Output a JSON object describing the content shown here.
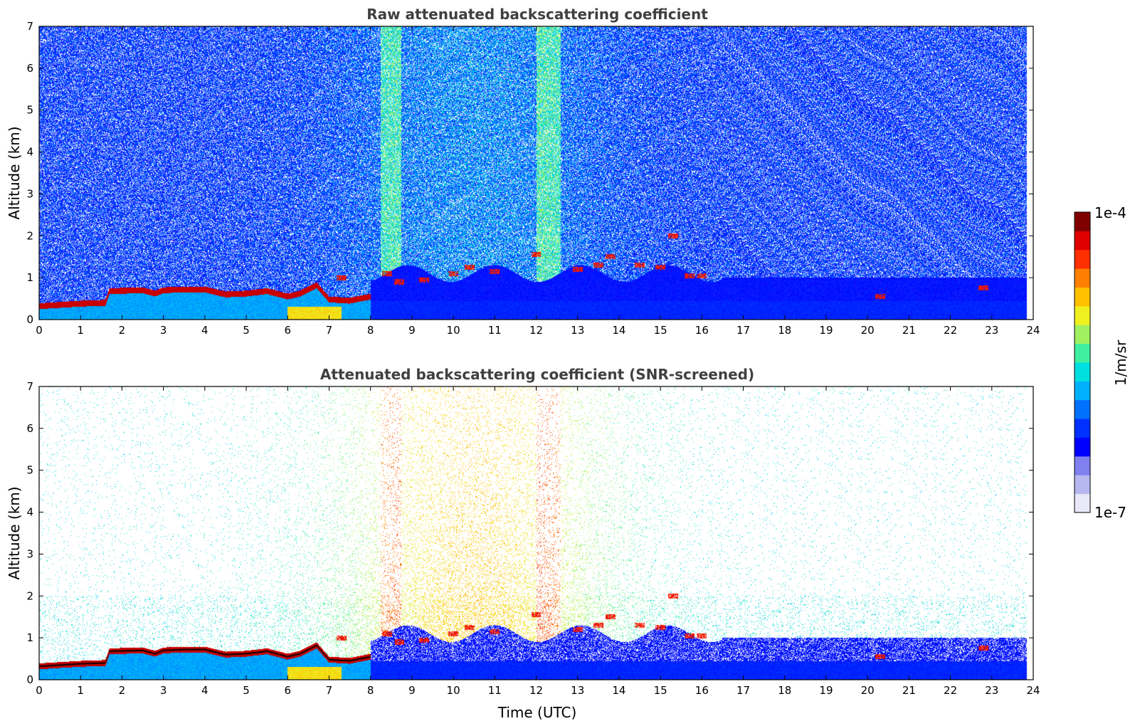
{
  "chart_data": [
    {
      "type": "heatmap",
      "title": "Raw attenuated backscattering coefficient",
      "xlabel": "",
      "ylabel": "Altitude (km)",
      "xlim": [
        0,
        24
      ],
      "ylim": [
        0,
        7
      ],
      "xticks": [
        "0",
        "1",
        "2",
        "3",
        "4",
        "5",
        "6",
        "7",
        "8",
        "9",
        "10",
        "11",
        "12",
        "13",
        "14",
        "15",
        "16",
        "17",
        "18",
        "19",
        "20",
        "21",
        "22",
        "23",
        "24"
      ],
      "yticks": [
        "0",
        "1",
        "2",
        "3",
        "4",
        "5",
        "6",
        "7"
      ],
      "screened": false,
      "cloud_layer": {
        "time": [
          0,
          0.5,
          1.0,
          1.6,
          1.7,
          2.5,
          2.8,
          3.0,
          3.5,
          4.0,
          4.5,
          5.0,
          5.5,
          6.0,
          6.3,
          6.7,
          7.0,
          7.5,
          8.0
        ],
        "base_km": [
          0.32,
          0.35,
          0.38,
          0.4,
          0.68,
          0.7,
          0.62,
          0.7,
          0.72,
          0.72,
          0.6,
          0.62,
          0.68,
          0.55,
          0.62,
          0.82,
          0.48,
          0.45,
          0.55
        ]
      },
      "cloud_fragments": {
        "time": [
          7.3,
          8.4,
          8.7,
          9.3,
          10.0,
          10.4,
          11.0,
          12.0,
          13.0,
          13.5,
          13.8,
          14.5,
          15.0,
          15.3,
          15.7,
          16.0,
          20.3,
          22.8
        ],
        "base_km": [
          1.0,
          1.1,
          0.9,
          0.95,
          1.1,
          1.25,
          1.15,
          1.55,
          1.2,
          1.3,
          1.5,
          1.3,
          1.25,
          2.0,
          1.05,
          1.05,
          0.55,
          0.75
        ]
      },
      "colorbar": {
        "label": "1/m/sr",
        "min": "1e-7",
        "max": "1e-4"
      }
    },
    {
      "type": "heatmap",
      "title": "Attenuated backscattering coefficient (SNR-screened)",
      "xlabel": "Time (UTC)",
      "ylabel": "Altitude (km)",
      "xlim": [
        0,
        24
      ],
      "ylim": [
        0,
        7
      ],
      "xticks": [
        "0",
        "1",
        "2",
        "3",
        "4",
        "5",
        "6",
        "7",
        "8",
        "9",
        "10",
        "11",
        "12",
        "13",
        "14",
        "15",
        "16",
        "17",
        "18",
        "19",
        "20",
        "21",
        "22",
        "23",
        "24"
      ],
      "yticks": [
        "0",
        "1",
        "2",
        "3",
        "4",
        "5",
        "6",
        "7"
      ],
      "screened": true,
      "cloud_layer": {
        "time": [
          0,
          0.5,
          1.0,
          1.6,
          1.7,
          2.5,
          2.8,
          3.0,
          3.5,
          4.0,
          4.5,
          5.0,
          5.5,
          6.0,
          6.3,
          6.7,
          7.0,
          7.5,
          8.0
        ],
        "base_km": [
          0.32,
          0.35,
          0.38,
          0.4,
          0.68,
          0.7,
          0.62,
          0.7,
          0.72,
          0.72,
          0.6,
          0.62,
          0.68,
          0.55,
          0.62,
          0.82,
          0.48,
          0.45,
          0.55
        ]
      },
      "cloud_fragments": {
        "time": [
          7.3,
          8.4,
          8.7,
          9.3,
          10.0,
          10.4,
          11.0,
          12.0,
          13.0,
          13.5,
          13.8,
          14.5,
          15.0,
          15.3,
          15.7,
          16.0,
          20.3,
          22.8
        ],
        "base_km": [
          1.0,
          1.1,
          0.9,
          0.95,
          1.1,
          1.25,
          1.15,
          1.55,
          1.2,
          1.3,
          1.5,
          1.3,
          1.25,
          2.0,
          1.05,
          1.05,
          0.55,
          0.75
        ]
      },
      "colorbar": {
        "label": "1/m/sr",
        "min": "1e-7",
        "max": "1e-4"
      }
    }
  ],
  "colorbar": {
    "label": "1/m/sr",
    "max_label": "1e-4",
    "min_label": "1e-7",
    "colors": [
      "#e8e8f8",
      "#b8b8f0",
      "#8080f0",
      "#0000ff",
      "#0030ff",
      "#0070ff",
      "#00b0ff",
      "#00e0e0",
      "#40f0a0",
      "#a0f060",
      "#f0f020",
      "#ffc000",
      "#ff8000",
      "#ff3000",
      "#e00000",
      "#800000"
    ]
  }
}
